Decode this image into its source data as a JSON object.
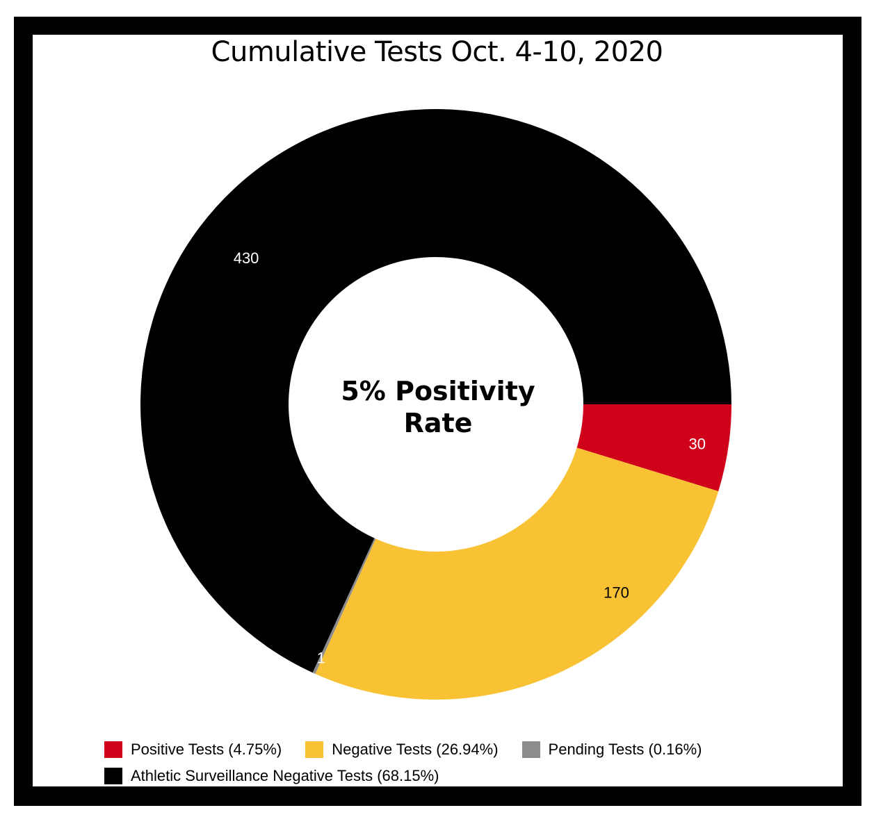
{
  "chart_data": {
    "type": "pie",
    "variant": "donut",
    "title": "Cumulative Tests Oct. 4-10, 2020",
    "center_label": {
      "line1": "5% Positivity",
      "line2": "Rate"
    },
    "slices": [
      {
        "name": "Positive Tests (4.75%)",
        "value": 30,
        "label": "30",
        "color": "#d0021b",
        "label_color": "#ffffff"
      },
      {
        "name": "Negative Tests (26.94%)",
        "value": 170,
        "label": "170",
        "color": "#f8c234",
        "label_color": "#000000"
      },
      {
        "name": "Pending Tests (0.16%)",
        "value": 1,
        "label": "1",
        "color": "#8c8c8c",
        "label_color": "#ffffff"
      },
      {
        "name": "Athletic Surveillance Negative Tests (68.15%)",
        "value": 430,
        "label": "430",
        "color": "#000000",
        "label_color": "#ffffff"
      }
    ],
    "legend": {
      "placement": "bottom",
      "rows": [
        [
          0,
          1,
          2
        ],
        [
          3
        ]
      ]
    }
  }
}
